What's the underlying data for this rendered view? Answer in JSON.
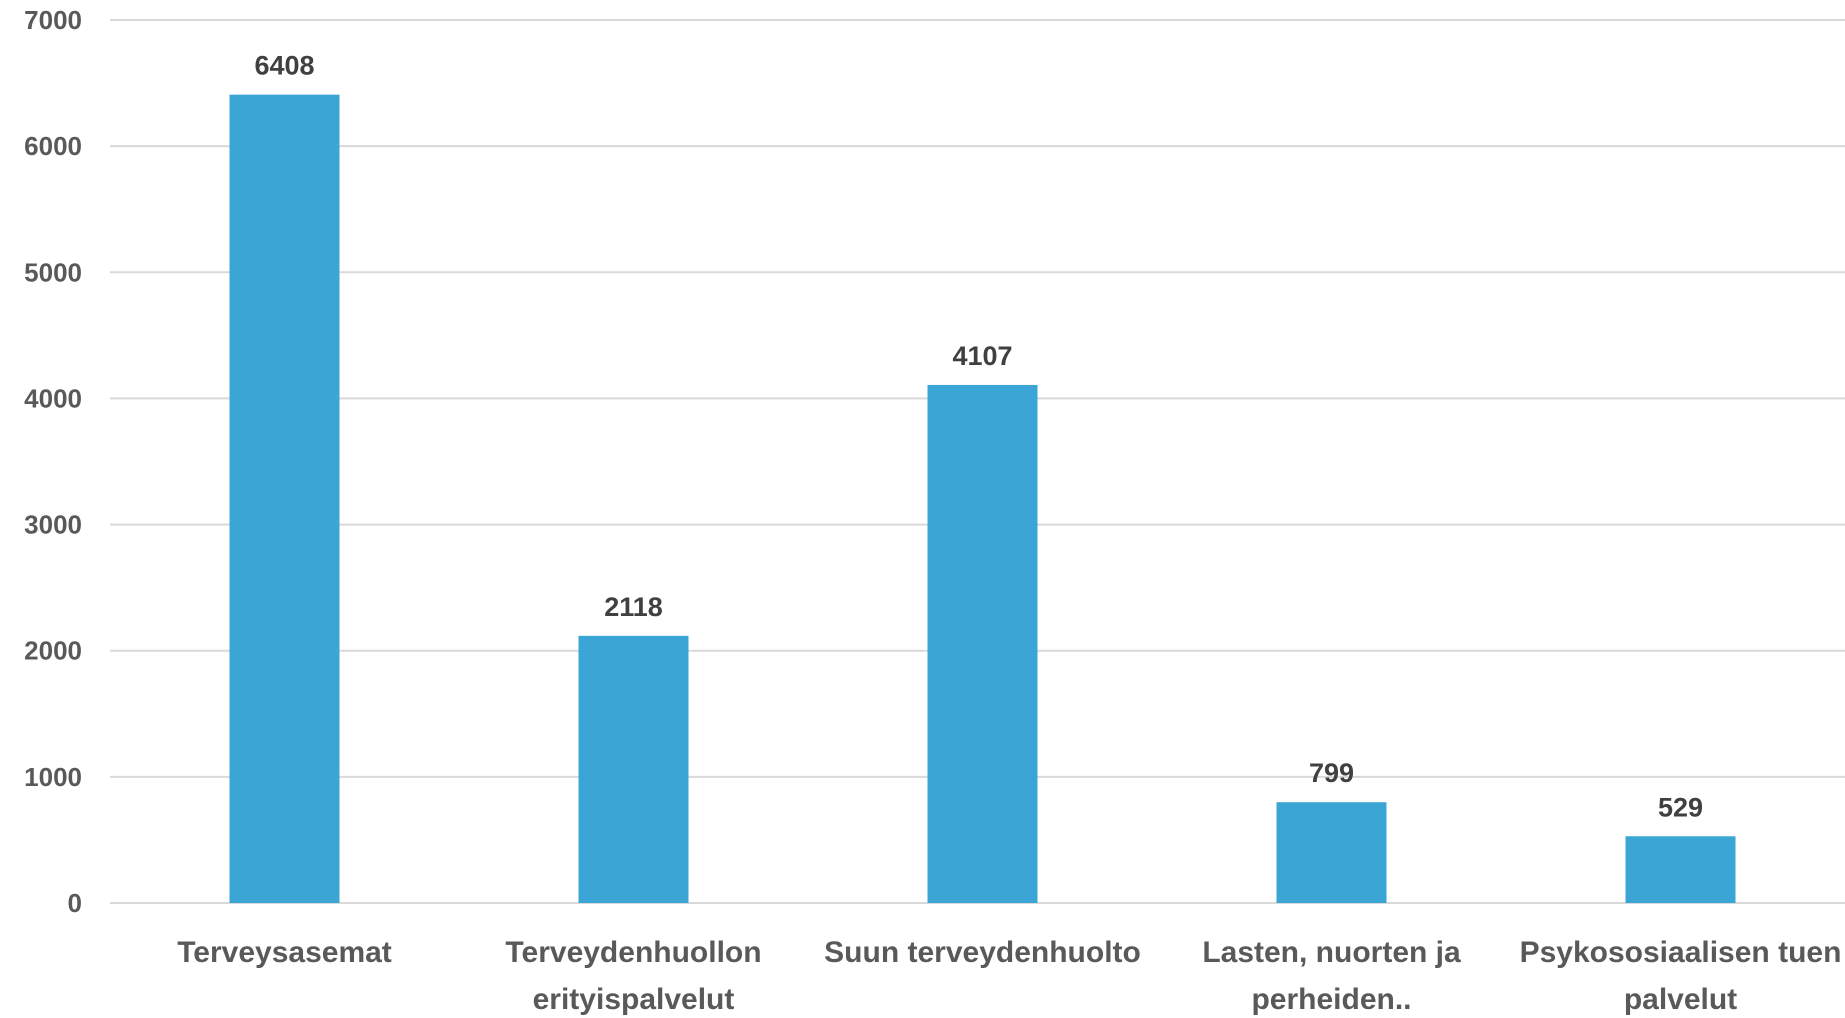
{
  "chart_data": {
    "type": "bar",
    "categories": [
      [
        "Terveysasemat"
      ],
      [
        "Terveydenhuollon",
        "erityispalvelut"
      ],
      [
        "Suun terveydenhuolto"
      ],
      [
        "Lasten, nuorten ja",
        "perheiden.."
      ],
      [
        "Psykososiaalisen tuen",
        "palvelut"
      ]
    ],
    "values": [
      6408,
      2118,
      4107,
      799,
      529
    ],
    "data_labels": [
      "6408",
      "2118",
      "4107",
      "799",
      "529"
    ],
    "yticks": [
      "0",
      "1000",
      "2000",
      "3000",
      "4000",
      "5000",
      "6000",
      "7000"
    ],
    "ylim": [
      0,
      7000
    ],
    "title": "",
    "xlabel": "",
    "ylabel": "",
    "grid": true,
    "legend": "none",
    "colors": {
      "bar": "#3ba6d6"
    }
  }
}
